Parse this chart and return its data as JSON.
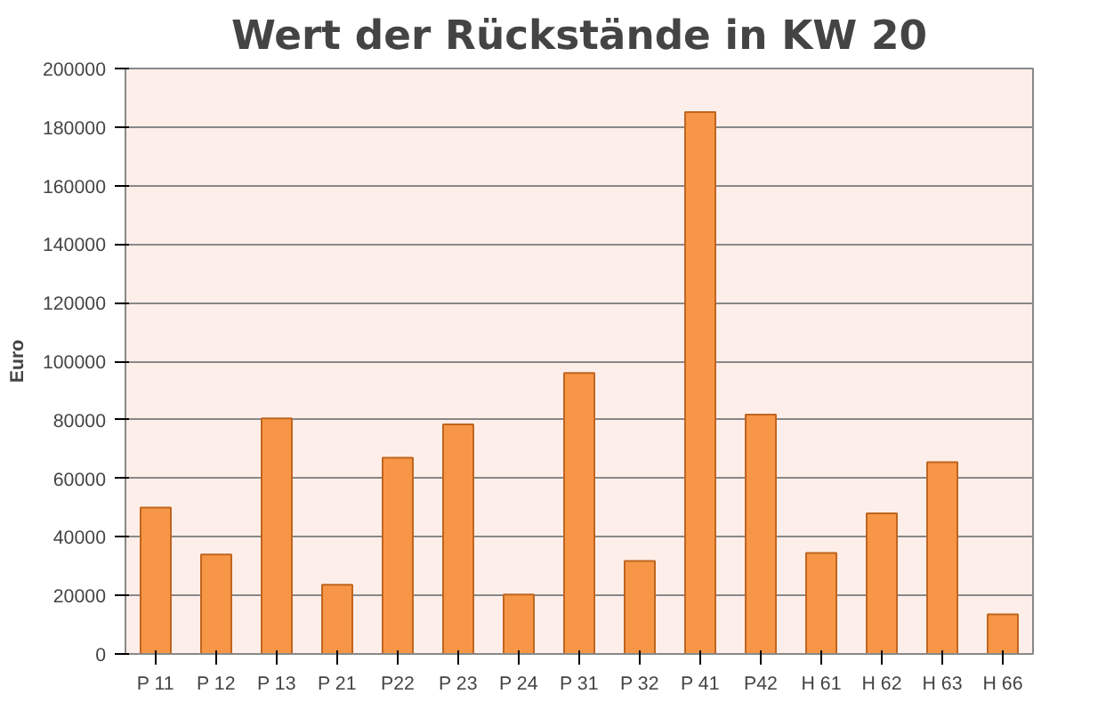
{
  "chart_data": {
    "type": "bar",
    "title": "Wert der Rückstände in KW 20",
    "ylabel": "Euro",
    "categories": [
      "P 11",
      "P 12",
      "P 13",
      "P 21",
      "P22",
      "P 23",
      "P 24",
      "P 31",
      "P 32",
      "P 41",
      "P42",
      "H 61",
      "H 62",
      "H 63",
      "H 66"
    ],
    "values": [
      50000,
      34000,
      80500,
      23600,
      67000,
      78400,
      20300,
      96000,
      31800,
      185100,
      81800,
      34500,
      48000,
      65500,
      13500
    ],
    "color": "#f79646",
    "ylim": [
      0,
      200000
    ],
    "yticks": [
      0,
      20000,
      40000,
      60000,
      80000,
      100000,
      120000,
      140000,
      160000,
      180000,
      200000
    ],
    "grid": "y"
  }
}
